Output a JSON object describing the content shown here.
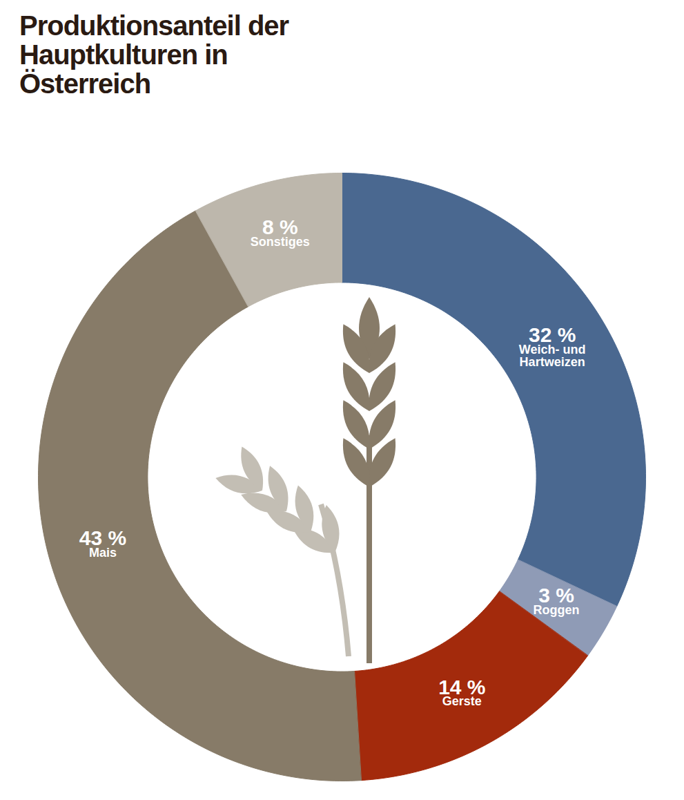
{
  "chart_data": {
    "type": "pie",
    "title": "Produktionsanteil der Hauptkulturen in Österreich",
    "categories": [
      "Weich- und Hartweizen",
      "Roggen",
      "Gerste",
      "Mais",
      "Sonstiges"
    ],
    "values": [
      32,
      3,
      14,
      43,
      8
    ],
    "value_labels": [
      "32 %",
      "3 %",
      "14 %",
      "43 %",
      "8 %"
    ],
    "colors": [
      "#4a6890",
      "#8f9bb6",
      "#a32a0c",
      "#877b68",
      "#bdb7ac"
    ],
    "data_labels": true
  }
}
